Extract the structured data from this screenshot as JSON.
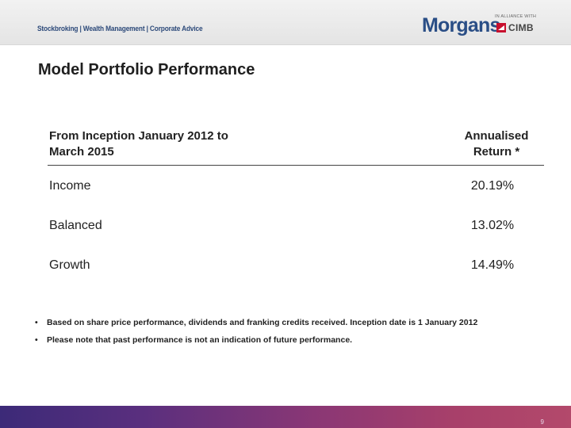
{
  "header": {
    "tagline": "Stockbroking | Wealth Management | Corporate Advice",
    "logo": {
      "brand": "Morgans",
      "alliance": "IN ALLIANCE WITH",
      "partner": "CIMB",
      "brand_color": "#2a4e86",
      "partner_mark_color": "#c8102e"
    }
  },
  "page": {
    "title": "Model Portfolio Performance",
    "number": "9"
  },
  "table": {
    "header_left_line1": "From Inception January 2012 to",
    "header_left_line2": "March 2015",
    "header_right_line1": "Annualised",
    "header_right_line2": "Return *",
    "rows": [
      {
        "label": "Income",
        "value": "20.19%"
      },
      {
        "label": "Balanced",
        "value": "13.02%"
      },
      {
        "label": "Growth",
        "value": "14.49%"
      }
    ]
  },
  "notes": [
    {
      "bullet": "•",
      "text": "Based on share price performance, dividends and franking credits received. Inception date is 1 January 2012"
    },
    {
      "bullet": "•",
      "text": "Please note that past performance is not an indication of future performance."
    }
  ]
}
